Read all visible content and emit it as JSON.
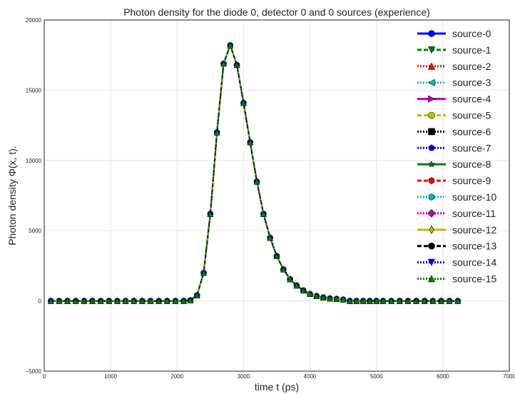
{
  "chart_data": {
    "type": "line",
    "title": "Photon density for the diode 0, detector 0 and 0 sources  (experience)",
    "xlabel": "time t (ps)",
    "ylabel": "Photon density Φ(x, t).",
    "xlim": [
      0,
      7000
    ],
    "ylim": [
      -5000,
      20000
    ],
    "xticks": [
      0,
      1000,
      2000,
      3000,
      4000,
      5000,
      6000,
      7000
    ],
    "yticks": [
      -5000,
      0,
      5000,
      10000,
      15000,
      20000
    ],
    "grid": true,
    "legend_position": "top-right",
    "x": [
      100,
      225,
      350,
      475,
      600,
      725,
      850,
      975,
      1100,
      1225,
      1350,
      1475,
      1600,
      1725,
      1850,
      1975,
      2100,
      2200,
      2300,
      2400,
      2500,
      2600,
      2700,
      2800,
      2900,
      3000,
      3100,
      3200,
      3300,
      3400,
      3500,
      3600,
      3700,
      3800,
      3900,
      4000,
      4100,
      4200,
      4300,
      4400,
      4500,
      4600,
      4700,
      4800,
      4900,
      5000,
      5100,
      5225,
      5350,
      5475,
      5600,
      5725,
      5850,
      5975,
      6100,
      6225
    ],
    "y": [
      0,
      0,
      0,
      0,
      0,
      0,
      0,
      0,
      0,
      0,
      0,
      0,
      0,
      0,
      0,
      0,
      0,
      50,
      400,
      2000,
      6200,
      12000,
      16900,
      18200,
      16800,
      14100,
      11300,
      8500,
      6200,
      4500,
      3200,
      2250,
      1550,
      1100,
      750,
      500,
      350,
      250,
      180,
      150,
      100,
      0,
      0,
      0,
      0,
      0,
      0,
      0,
      0,
      0,
      0,
      0,
      0,
      0,
      0,
      0
    ],
    "series": [
      {
        "name": "source-0",
        "color": "#0000ff",
        "line": "solid",
        "marker": "circle"
      },
      {
        "name": "source-1",
        "color": "#008000",
        "line": "dashed",
        "marker": "triangle-down"
      },
      {
        "name": "source-2",
        "color": "#ff0000",
        "line": "dotted",
        "marker": "triangle-up"
      },
      {
        "name": "source-3",
        "color": "#00bfbf",
        "line": "dotted",
        "marker": "triangle-left"
      },
      {
        "name": "source-4",
        "color": "#bf00bf",
        "line": "solid",
        "marker": "triangle-right"
      },
      {
        "name": "source-5",
        "color": "#bfbf00",
        "line": "dashed",
        "marker": "circle"
      },
      {
        "name": "source-6",
        "color": "#000000",
        "line": "dotted",
        "marker": "square"
      },
      {
        "name": "source-7",
        "color": "#0000ff",
        "line": "dotted",
        "marker": "pentagon"
      },
      {
        "name": "source-8",
        "color": "#008000",
        "line": "solid",
        "marker": "star"
      },
      {
        "name": "source-9",
        "color": "#ff0000",
        "line": "dashed",
        "marker": "hexagon"
      },
      {
        "name": "source-10",
        "color": "#00bfbf",
        "line": "dotted",
        "marker": "hexagon"
      },
      {
        "name": "source-11",
        "color": "#bf00bf",
        "line": "dotted",
        "marker": "diamond"
      },
      {
        "name": "source-12",
        "color": "#bfbf00",
        "line": "solid",
        "marker": "thin-diamond"
      },
      {
        "name": "source-13",
        "color": "#000000",
        "line": "dashed",
        "marker": "circle"
      },
      {
        "name": "source-14",
        "color": "#0000ff",
        "line": "dotted",
        "marker": "triangle-down"
      },
      {
        "name": "source-15",
        "color": "#008000",
        "line": "dotted",
        "marker": "triangle-up"
      }
    ]
  }
}
